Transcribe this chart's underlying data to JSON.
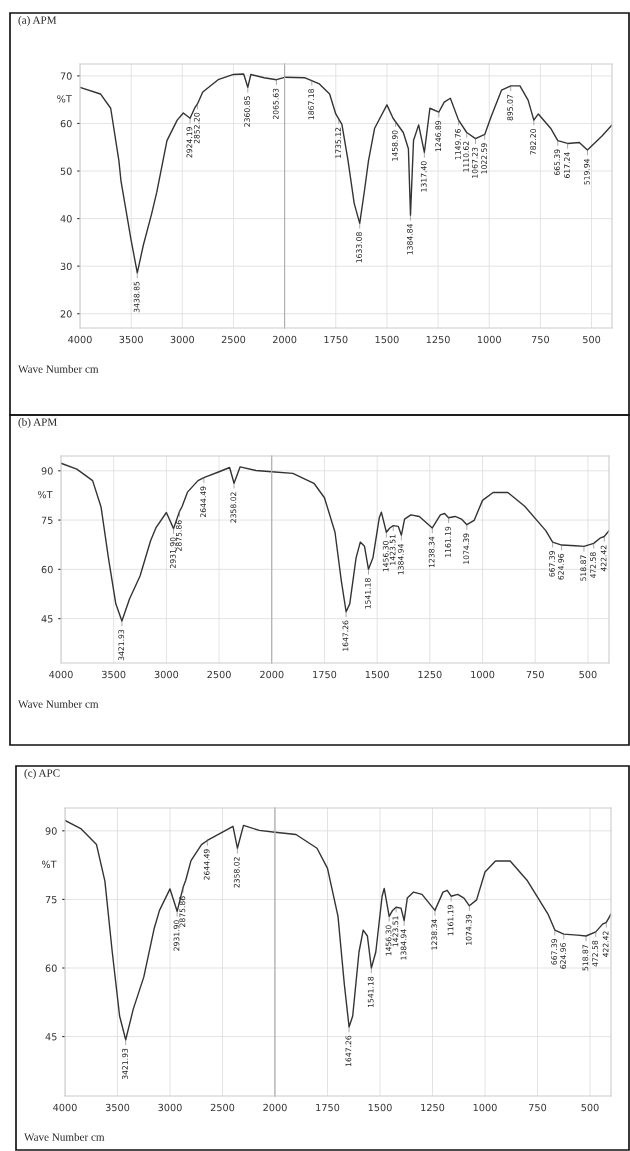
{
  "chart_data": [
    {
      "type": "line",
      "title": "(a) APM",
      "xlabel": "Wave Number cm",
      "ylabel": "%T",
      "xlim": [
        4000,
        2000
      ],
      "xticks": [
        4000,
        3500,
        3000,
        2500,
        2000
      ],
      "ylim": [
        17,
        72.5
      ],
      "yticks": [
        20,
        30,
        40,
        50,
        60,
        70
      ],
      "grid": true,
      "series": [
        {
          "color": "#333333",
          "x": [
            4000,
            3800,
            3700,
            3620,
            3600,
            3500,
            3440,
            3380,
            3300,
            3250,
            3150,
            3050,
            2990,
            2924.19,
            2880,
            2852,
            2800,
            2650,
            2500,
            2400,
            2360,
            2330,
            2200,
            2080,
            2000
          ],
          "values": [
            67.6,
            66.2,
            63.2,
            52.2,
            48,
            35.4,
            28.6,
            34.5,
            41,
            45.5,
            56.4,
            60.7,
            62.2,
            61.1,
            63.2,
            64.1,
            66.6,
            69.2,
            70.3,
            70.4,
            67.6,
            70.3,
            69.6,
            69.2,
            69.7
          ]
        }
      ],
      "annotations": [
        {
          "text": "3438.85",
          "x": 3440,
          "y": 28.6
        },
        {
          "text": "2924.19",
          "x": 2924.19,
          "y": 61.1
        },
        {
          "text": "2852.20",
          "x": 2852,
          "y": 64.1
        },
        {
          "text": "2360.85",
          "x": 2360,
          "y": 67.6
        },
        {
          "text": "2065.63",
          "x": 2080,
          "y": 69.2
        }
      ]
    },
    {
      "type": "line",
      "xlim": [
        2000,
        400
      ],
      "xticks": [
        1750,
        1500,
        1250,
        1000,
        750,
        500
      ],
      "ylim": [
        17,
        72.5
      ],
      "yticks": [
        20,
        30,
        40,
        50,
        60,
        70
      ],
      "grid": true,
      "tick_labels": "x",
      "series": [
        {
          "color": "#333333",
          "x": [
            2000,
            1900,
            1830,
            1780,
            1750,
            1720,
            1690,
            1660,
            1633,
            1610,
            1590,
            1560,
            1500,
            1470,
            1420,
            1395,
            1384.84,
            1370,
            1345,
            1317,
            1290,
            1246,
            1220,
            1190,
            1150,
            1110,
            1067,
            1022,
            990,
            940,
            895,
            850,
            810,
            782,
            760,
            700,
            665,
            617,
            560,
            520,
            450,
            400
          ],
          "values": [
            69.7,
            69.6,
            68.3,
            66.2,
            62,
            59.8,
            52.2,
            43.2,
            39,
            45.8,
            52.2,
            59,
            63.9,
            61.1,
            58.1,
            54.7,
            40.7,
            56.4,
            59.7,
            53.9,
            63.2,
            62.4,
            64.5,
            65.3,
            60.7,
            58.1,
            56.8,
            57.7,
            61.5,
            67,
            67.9,
            67.9,
            64.9,
            60.7,
            62,
            59,
            56.4,
            55.8,
            56,
            54.4,
            57.3,
            59.7
          ]
        }
      ],
      "annotations": [
        {
          "text": "1867.18",
          "x": 1867,
          "y": 69.1
        },
        {
          "text": "1735.12",
          "x": 1735,
          "y": 61
        },
        {
          "text": "1633.08",
          "x": 1633,
          "y": 39
        },
        {
          "text": "1458.90",
          "x": 1458,
          "y": 60.4
        },
        {
          "text": "1384.84",
          "x": 1384.84,
          "y": 40.7
        },
        {
          "text": "1317.40",
          "x": 1317,
          "y": 53.9
        },
        {
          "text": "1246.89",
          "x": 1246,
          "y": 62.4
        },
        {
          "text": "1149.76",
          "x": 1150,
          "y": 60.7
        },
        {
          "text": "1110.62",
          "x": 1110,
          "y": 58.1
        },
        {
          "text": "1067.23",
          "x": 1067,
          "y": 56.8
        },
        {
          "text": "1022.59",
          "x": 1022,
          "y": 57.7
        },
        {
          "text": "895.07",
          "x": 895,
          "y": 67.9
        },
        {
          "text": "782.20",
          "x": 782,
          "y": 60.7
        },
        {
          "text": "665.39",
          "x": 665,
          "y": 56.4
        },
        {
          "text": "617.24",
          "x": 617,
          "y": 55.8
        },
        {
          "text": "519.94",
          "x": 520,
          "y": 54.4
        }
      ]
    },
    {
      "type": "line",
      "title": "(b) APM",
      "xlabel": "Wave Number cm",
      "ylabel": "%T",
      "xlim": [
        4000,
        2000
      ],
      "xticks": [
        4000,
        3500,
        3000,
        2500,
        2000
      ],
      "ylim": [
        31.5,
        94.5
      ],
      "yticks": [
        45,
        60,
        75,
        90
      ],
      "grid": true,
      "series": [
        {
          "color": "#333333",
          "x": [
            4000,
            3850,
            3700,
            3620,
            3550,
            3480,
            3421.93,
            3350,
            3250,
            3150,
            3100,
            3000,
            2931.9,
            2875.86,
            2850,
            2800,
            2700,
            2644.49,
            2500,
            2400,
            2358.02,
            2300,
            2150,
            2000
          ],
          "values": [
            92.3,
            90.5,
            87,
            79,
            63.5,
            49.5,
            44.3,
            51,
            58,
            68.7,
            72.6,
            77.3,
            72.4,
            77.6,
            79.2,
            83.5,
            87,
            87.9,
            89.7,
            91,
            86.2,
            91.2,
            90.1,
            89.7
          ]
        }
      ],
      "annotations": [
        {
          "text": "3421.93",
          "x": 3421.93,
          "y": 44.3
        },
        {
          "text": "2931.90",
          "x": 2931.9,
          "y": 72.4
        },
        {
          "text": "2875.86",
          "x": 2875.86,
          "y": 77.6
        },
        {
          "text": "2644.49",
          "x": 2644.49,
          "y": 87.9
        },
        {
          "text": "2358.02",
          "x": 2358.02,
          "y": 86.2
        }
      ]
    },
    {
      "type": "line",
      "xlim": [
        2000,
        400
      ],
      "xticks": [
        1750,
        1500,
        1250,
        1000,
        750,
        500
      ],
      "ylim": [
        31.5,
        94.5
      ],
      "yticks": [
        45,
        60,
        75,
        90
      ],
      "grid": true,
      "tick_labels": "x",
      "series": [
        {
          "color": "#333333",
          "x": [
            2000,
            1900,
            1800,
            1750,
            1700,
            1670,
            1647.26,
            1630,
            1600,
            1580,
            1560,
            1541.18,
            1520,
            1490,
            1480,
            1456.3,
            1440,
            1423.51,
            1400,
            1384.94,
            1370,
            1340,
            1300,
            1238.34,
            1200,
            1180,
            1161.19,
            1130,
            1100,
            1074.39,
            1040,
            1000,
            950,
            880,
            800,
            700,
            667.39,
            624.96,
            560,
            518.87,
            472.58,
            440,
            422.42,
            400
          ],
          "values": [
            89.7,
            89.2,
            86.2,
            81.8,
            71.3,
            56.5,
            47.1,
            49.5,
            63.5,
            68.3,
            67,
            60,
            63.5,
            75.7,
            77.4,
            71.3,
            72.6,
            73.3,
            73.1,
            70.4,
            75.3,
            76.6,
            76.1,
            72.6,
            76.6,
            77,
            75.7,
            76.1,
            75.3,
            73.6,
            74.9,
            81,
            83.4,
            83.4,
            79.2,
            71.8,
            68.3,
            67.4,
            67.2,
            67,
            67.9,
            69.6,
            70,
            71.8
          ]
        }
      ],
      "annotations": [
        {
          "text": "1647.26",
          "x": 1647.26,
          "y": 47.1
        },
        {
          "text": "1541.18",
          "x": 1541.18,
          "y": 60
        },
        {
          "text": "1456.30",
          "x": 1456.3,
          "y": 71.3
        },
        {
          "text": "1423.51",
          "x": 1423.51,
          "y": 73.3
        },
        {
          "text": "1384.94",
          "x": 1384.94,
          "y": 70.4
        },
        {
          "text": "1238.34",
          "x": 1238.34,
          "y": 72.6
        },
        {
          "text": "1161.19",
          "x": 1161.19,
          "y": 75.7
        },
        {
          "text": "1074.39",
          "x": 1074.39,
          "y": 73.6
        },
        {
          "text": "667.39",
          "x": 667.39,
          "y": 68.3
        },
        {
          "text": "624.96",
          "x": 624.96,
          "y": 67.4
        },
        {
          "text": "518.87",
          "x": 518.87,
          "y": 67
        },
        {
          "text": "472.58",
          "x": 472.58,
          "y": 67.9
        },
        {
          "text": "422.42",
          "x": 422.42,
          "y": 70
        }
      ]
    },
    {
      "type": "line",
      "title": "(c) APC",
      "xlabel": "Wave Number cm",
      "ylabel": "%T",
      "xlim": [
        4000,
        2000
      ],
      "xticks": [
        4000,
        3500,
        3000,
        2500,
        2000
      ],
      "ylim": [
        32,
        95
      ],
      "yticks": [
        45,
        60,
        75,
        90
      ],
      "grid": true,
      "series": [
        {
          "color": "#333333",
          "x": [
            4000,
            3850,
            3700,
            3620,
            3550,
            3480,
            3421.93,
            3350,
            3250,
            3150,
            3100,
            3000,
            2931.9,
            2875.86,
            2850,
            2800,
            2700,
            2644.49,
            2500,
            2400,
            2358.02,
            2300,
            2150,
            2000
          ],
          "values": [
            92.3,
            90.5,
            87,
            79,
            63.5,
            49.5,
            44.3,
            51,
            58,
            68.7,
            72.6,
            77.3,
            72.4,
            77.6,
            79.2,
            83.5,
            87,
            87.9,
            89.7,
            91,
            86.2,
            91.2,
            90.1,
            89.7
          ]
        }
      ],
      "annotations": [
        {
          "text": "3421.93",
          "x": 3421.93,
          "y": 44.3
        },
        {
          "text": "2931.90",
          "x": 2931.9,
          "y": 72.4
        },
        {
          "text": "2875.86",
          "x": 2875.86,
          "y": 77.6
        },
        {
          "text": "2644.49",
          "x": 2644.49,
          "y": 87.9
        },
        {
          "text": "2358.02",
          "x": 2358.02,
          "y": 86.2
        }
      ]
    },
    {
      "type": "line",
      "xlim": [
        2000,
        400
      ],
      "xticks": [
        1750,
        1500,
        1250,
        1000,
        750,
        500
      ],
      "ylim": [
        32,
        95
      ],
      "yticks": [
        45,
        60,
        75,
        90
      ],
      "grid": true,
      "tick_labels": "x",
      "series": [
        {
          "color": "#333333",
          "x": [
            2000,
            1900,
            1800,
            1750,
            1700,
            1670,
            1647.26,
            1630,
            1600,
            1580,
            1560,
            1541.18,
            1520,
            1490,
            1480,
            1456.3,
            1440,
            1423.51,
            1400,
            1384.94,
            1370,
            1340,
            1300,
            1238.34,
            1200,
            1180,
            1161.19,
            1130,
            1100,
            1074.39,
            1040,
            1000,
            950,
            880,
            800,
            700,
            667.39,
            624.96,
            560,
            518.87,
            472.58,
            440,
            422.42,
            400
          ],
          "values": [
            89.7,
            89.2,
            86.2,
            81.8,
            71.3,
            56.5,
            47.1,
            49.5,
            63.5,
            68.3,
            67,
            60,
            63.5,
            75.7,
            77.4,
            71.3,
            72.6,
            73.3,
            73.1,
            70.4,
            75.3,
            76.6,
            76.1,
            72.6,
            76.6,
            77,
            75.7,
            76.1,
            75.3,
            73.6,
            74.9,
            81,
            83.4,
            83.4,
            79.2,
            71.8,
            68.3,
            67.4,
            67.2,
            67,
            67.9,
            69.6,
            70,
            71.8
          ]
        }
      ],
      "annotations": [
        {
          "text": "1647.26",
          "x": 1647.26,
          "y": 47.1
        },
        {
          "text": "1541.18",
          "x": 1541.18,
          "y": 60
        },
        {
          "text": "1456.30",
          "x": 1456.3,
          "y": 71.3
        },
        {
          "text": "1423.51",
          "x": 1423.51,
          "y": 73.3
        },
        {
          "text": "1384.94",
          "x": 1384.94,
          "y": 70.4
        },
        {
          "text": "1238.34",
          "x": 1238.34,
          "y": 72.6
        },
        {
          "text": "1161.19",
          "x": 1161.19,
          "y": 75.7
        },
        {
          "text": "1074.39",
          "x": 1074.39,
          "y": 73.6
        },
        {
          "text": "667.39",
          "x": 667.39,
          "y": 68.3
        },
        {
          "text": "624.96",
          "x": 624.96,
          "y": 67.4
        },
        {
          "text": "518.87",
          "x": 518.87,
          "y": 67
        },
        {
          "text": "472.58",
          "x": 472.58,
          "y": 67.9
        },
        {
          "text": "422.42",
          "x": 422.42,
          "y": 70
        }
      ]
    }
  ]
}
